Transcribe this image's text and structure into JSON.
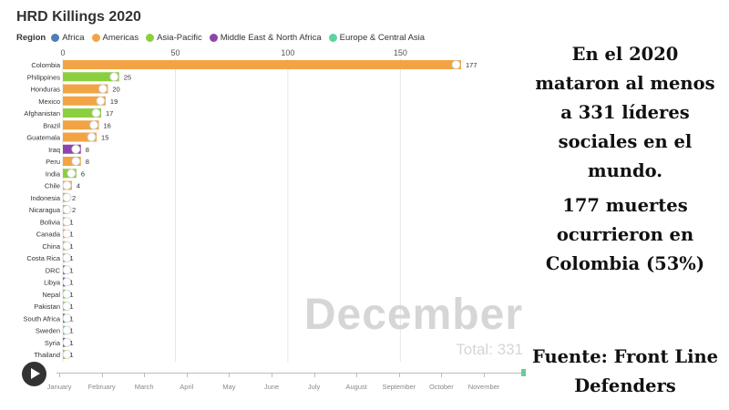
{
  "chart_data": {
    "type": "bar",
    "orientation": "horizontal",
    "title": "HRD Killings 2020",
    "legend": {
      "label": "Region",
      "placement": "top-left",
      "entries": [
        {
          "name": "Africa",
          "color": "#4c7fb5"
        },
        {
          "name": "Americas",
          "color": "#f2a445"
        },
        {
          "name": "Asia-Pacific",
          "color": "#8bcf3f"
        },
        {
          "name": "Middle East & North Africa",
          "color": "#8e44ad"
        },
        {
          "name": "Europe & Central Asia",
          "color": "#5dd39e"
        }
      ]
    },
    "xlim": [
      0,
      177
    ],
    "xticks": [
      0,
      50,
      100,
      150
    ],
    "grid": true,
    "categories": [
      "Colombia",
      "Philippines",
      "Honduras",
      "Mexico",
      "Afghanistan",
      "Brazil",
      "Guatemala",
      "Iraq",
      "Peru",
      "India",
      "Chile",
      "Indonesia",
      "Nicaragua",
      "Bolivia",
      "Canada",
      "China",
      "Costa Rica",
      "DRC",
      "Libya",
      "Nepal",
      "Pakistan",
      "South Africa",
      "Sweden",
      "Syria",
      "Thailand"
    ],
    "values": [
      177,
      25,
      20,
      19,
      17,
      16,
      15,
      8,
      8,
      6,
      4,
      2,
      2,
      1,
      1,
      1,
      1,
      1,
      1,
      1,
      1,
      1,
      1,
      1,
      1
    ],
    "regions": [
      "Americas",
      "Asia-Pacific",
      "Americas",
      "Americas",
      "Asia-Pacific",
      "Americas",
      "Americas",
      "Middle East & North Africa",
      "Americas",
      "Asia-Pacific",
      "Americas",
      "Asia-Pacific",
      "Americas",
      "Americas",
      "Americas",
      "Asia-Pacific",
      "Americas",
      "Africa",
      "Middle East & North Africa",
      "Asia-Pacific",
      "Asia-Pacific",
      "Africa",
      "Europe & Central Asia",
      "Middle East & North Africa",
      "Asia-Pacific"
    ],
    "period_label": "December",
    "total_label": "Total: 331",
    "timeline_months": [
      "January",
      "February",
      "March",
      "April",
      "May",
      "June",
      "July",
      "August",
      "September",
      "October",
      "November"
    ]
  },
  "caption": {
    "line1": "En el 2020 mataron al menos a 331 líderes sociales en el mundo.",
    "line2": "177 muertes ocurrieron en Colombia (53%)",
    "line3": "Fuente: Front Line Defenders"
  }
}
